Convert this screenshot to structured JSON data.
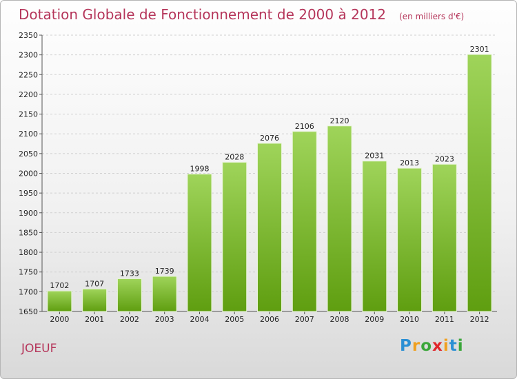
{
  "title": "Dotation Globale de Fonctionnement de 2000 à 2012",
  "subtitle": "(en milliers d'€)",
  "commune": "JOEUF",
  "logo": {
    "letters": [
      "P",
      "r",
      "o",
      "x",
      "i",
      "t",
      "i"
    ],
    "colors": [
      "#2a8fd4",
      "#f0a020",
      "#3aa63a",
      "#e0262b",
      "#f0a020",
      "#2a8fd4",
      "#3aa63a"
    ]
  },
  "colors": {
    "bar_top": "#9fd45a",
    "bar_bottom": "#5f9e10",
    "title": "#b5355a"
  },
  "chart_data": {
    "type": "bar",
    "title": "Dotation Globale de Fonctionnement de 2000 à 2012",
    "subtitle": "(en milliers d'€)",
    "categories": [
      "2000",
      "2001",
      "2002",
      "2003",
      "2004",
      "2005",
      "2006",
      "2007",
      "2008",
      "2009",
      "2010",
      "2011",
      "2012"
    ],
    "values": [
      1702,
      1707,
      1733,
      1739,
      1998,
      2028,
      2076,
      2106,
      2120,
      2031,
      2013,
      2023,
      2301
    ],
    "ylim": [
      1650,
      2350
    ],
    "yticks": [
      1650,
      1700,
      1750,
      1800,
      1850,
      1900,
      1950,
      2000,
      2050,
      2100,
      2150,
      2200,
      2250,
      2300,
      2350
    ],
    "grid": true,
    "legend": "none"
  }
}
